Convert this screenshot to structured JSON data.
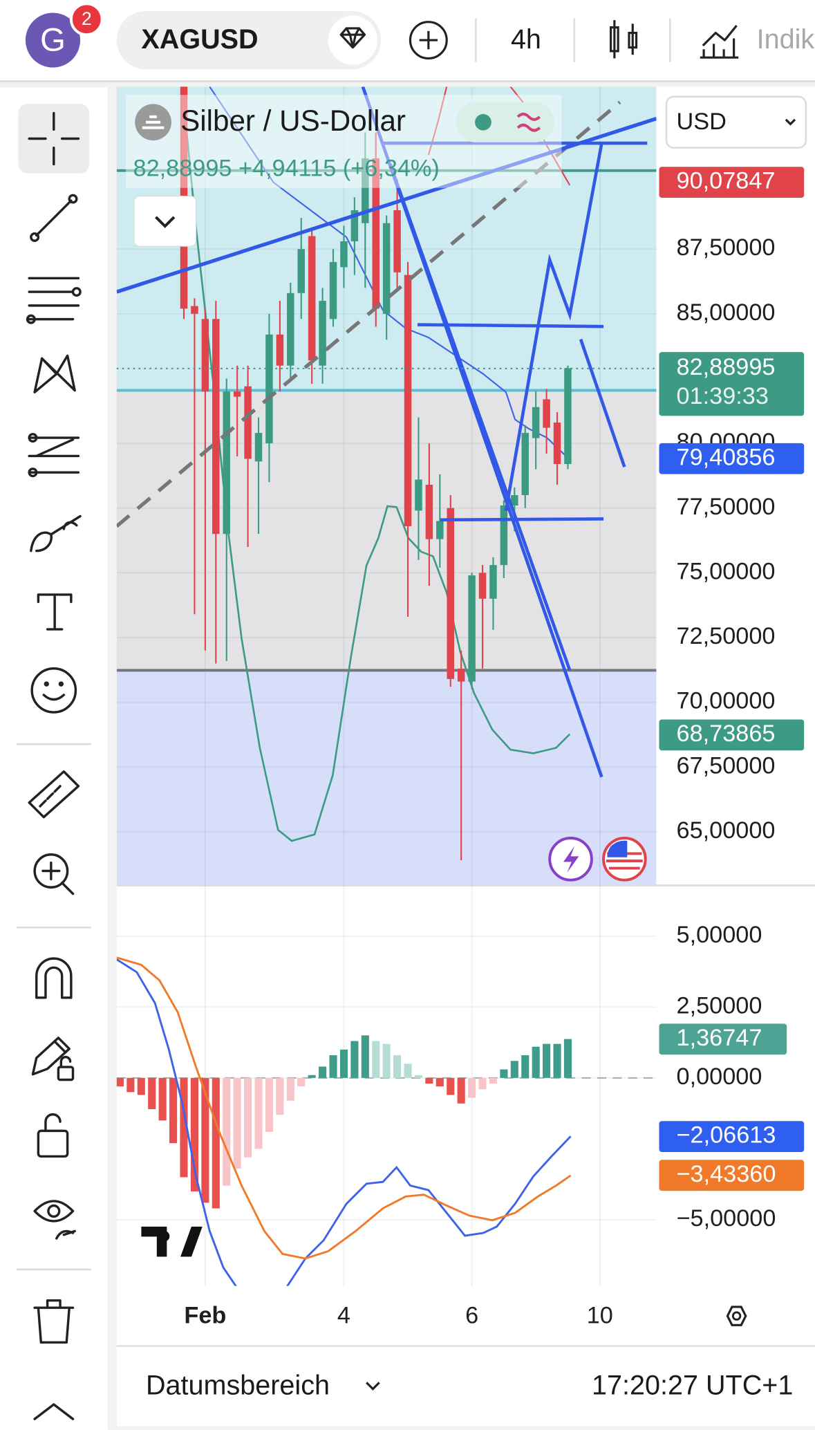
{
  "header": {
    "avatar": "G",
    "notifications": "2",
    "symbol": "XAGUSD",
    "interval": "4h",
    "indicators": "Indik"
  },
  "legend": {
    "title": "Silber / US-Dollar",
    "quote": "82,88995 +4,94115 (+6,34%)"
  },
  "currency": "USD",
  "chart_data": [
    {
      "type": "candlestick",
      "open": [
        93.8,
        85.3,
        84.8,
        84.8,
        76.5,
        82.0,
        82.2,
        79.3,
        80.0,
        84.2,
        83.0,
        85.8,
        88.0,
        83.0,
        84.8,
        86.8,
        87.8,
        88.5,
        91.0,
        85.0,
        89.0,
        86.5,
        77.4,
        78.4,
        76.3,
        77.5,
        71.3,
        70.8,
        75.0,
        74.0,
        75.3,
        77.6,
        78.0,
        80.2,
        81.7,
        80.8,
        79.2
      ],
      "high": [
        95.0,
        85.6,
        85.2,
        85.5,
        82.5,
        83.0,
        83.0,
        81.0,
        85.0,
        85.5,
        86.2,
        88.7,
        88.3,
        86.0,
        87.5,
        88.4,
        89.5,
        92.0,
        92.0,
        88.8,
        90.2,
        87.0,
        81.0,
        80.0,
        78.8,
        78.0,
        72.0,
        75.0,
        75.3,
        75.6,
        77.8,
        78.3,
        80.7,
        82.0,
        82.1,
        81.2,
        83.0
      ],
      "low": [
        84.8,
        73.4,
        72.0,
        71.5,
        71.6,
        79.5,
        76.0,
        76.5,
        78.5,
        82.0,
        82.5,
        84.8,
        82.3,
        82.3,
        84.5,
        86.0,
        86.5,
        86.0,
        84.5,
        84.0,
        86.0,
        73.3,
        75.5,
        74.5,
        75.2,
        70.6,
        63.9,
        70.5,
        71.3,
        72.8,
        74.8,
        76.6,
        77.5,
        79.0,
        79.6,
        78.4,
        79.0
      ],
      "close": [
        85.2,
        85.0,
        82.0,
        76.5,
        82.0,
        81.8,
        79.4,
        80.4,
        84.2,
        83.0,
        85.8,
        87.5,
        83.2,
        85.5,
        87.0,
        87.8,
        89.0,
        91.0,
        85.2,
        88.5,
        86.6,
        76.8,
        78.6,
        76.3,
        77.0,
        70.9,
        70.8,
        74.9,
        74.0,
        75.3,
        77.6,
        78.0,
        80.4,
        81.4,
        80.6,
        79.2,
        82.9
      ],
      "up_color": "#3d9a82",
      "down_color": "#e0434a",
      "xlim": [
        -6.3,
        44.3
      ],
      "xticks": [
        {
          "value": 2,
          "label": "Feb"
        },
        {
          "value": 15,
          "label": "4"
        },
        {
          "value": 27,
          "label": "6"
        },
        {
          "value": 39,
          "label": "10"
        }
      ],
      "ylim": [
        62.96,
        93.77
      ],
      "yticks": [
        {
          "value": 87.5,
          "label": "87,50000"
        },
        {
          "value": 85,
          "label": "85,00000"
        },
        {
          "value": 80,
          "label": "80,00000"
        },
        {
          "value": 77.5,
          "label": "77,50000"
        },
        {
          "value": 75,
          "label": "75,00000"
        },
        {
          "value": 72.5,
          "label": "72,50000"
        },
        {
          "value": 70,
          "label": "70,00000"
        },
        {
          "value": 67.5,
          "label": "67,50000"
        },
        {
          "value": 65,
          "label": "65,00000"
        }
      ],
      "price_badges": [
        {
          "value": 90.07847,
          "label": "90,07847",
          "color": "#e0434a"
        },
        {
          "value": 82.88995,
          "label": "82,88995",
          "sublabel": "01:39:33",
          "color": "#3d9a84"
        },
        {
          "value": 79.40856,
          "label": "79,40856",
          "color": "#2f5ff0"
        },
        {
          "value": 68.73865,
          "label": "68,73865",
          "color": "#3d9a84"
        }
      ]
    },
    {
      "type": "bar",
      "values": [
        -0.3,
        -0.5,
        -0.6,
        -1.1,
        -1.5,
        -2.3,
        -3.5,
        -4.0,
        -4.4,
        -4.6,
        -3.8,
        -3.2,
        -2.8,
        -2.5,
        -1.9,
        -1.3,
        -0.8,
        -0.3,
        0.1,
        0.4,
        0.8,
        1.0,
        1.3,
        1.5,
        1.3,
        1.2,
        0.8,
        0.5,
        0.1,
        -0.2,
        -0.3,
        -0.6,
        -0.9,
        -0.7,
        -0.4,
        -0.2,
        0.3,
        0.6,
        0.8,
        1.1,
        1.2,
        1.2,
        1.37
      ],
      "colors": [
        "#3f9c8a",
        "#b5ddd6",
        "#e8504e",
        "#f7c5c9"
      ],
      "xlim": [
        -0.3,
        50.3
      ],
      "ylim": [
        -7.33,
        6.75
      ],
      "yticks": [
        {
          "value": 5,
          "label": "5,00000"
        },
        {
          "value": 2.5,
          "label": "2,50000"
        },
        {
          "value": 0,
          "label": "0,00000"
        },
        {
          "value": -5,
          "label": "−5,00000"
        }
      ],
      "badges": [
        {
          "value": 1.36747,
          "label": "1,36747",
          "color": "#4fa394"
        },
        {
          "value": -2.06613,
          "label": "−2,06613",
          "color": "#2f5ff0"
        },
        {
          "value": -3.4336,
          "label": "−3,43360",
          "color": "#f07a2a"
        }
      ]
    }
  ],
  "footer": {
    "range": "Datumsbereich",
    "time": "17:20:27 UTC+1"
  }
}
